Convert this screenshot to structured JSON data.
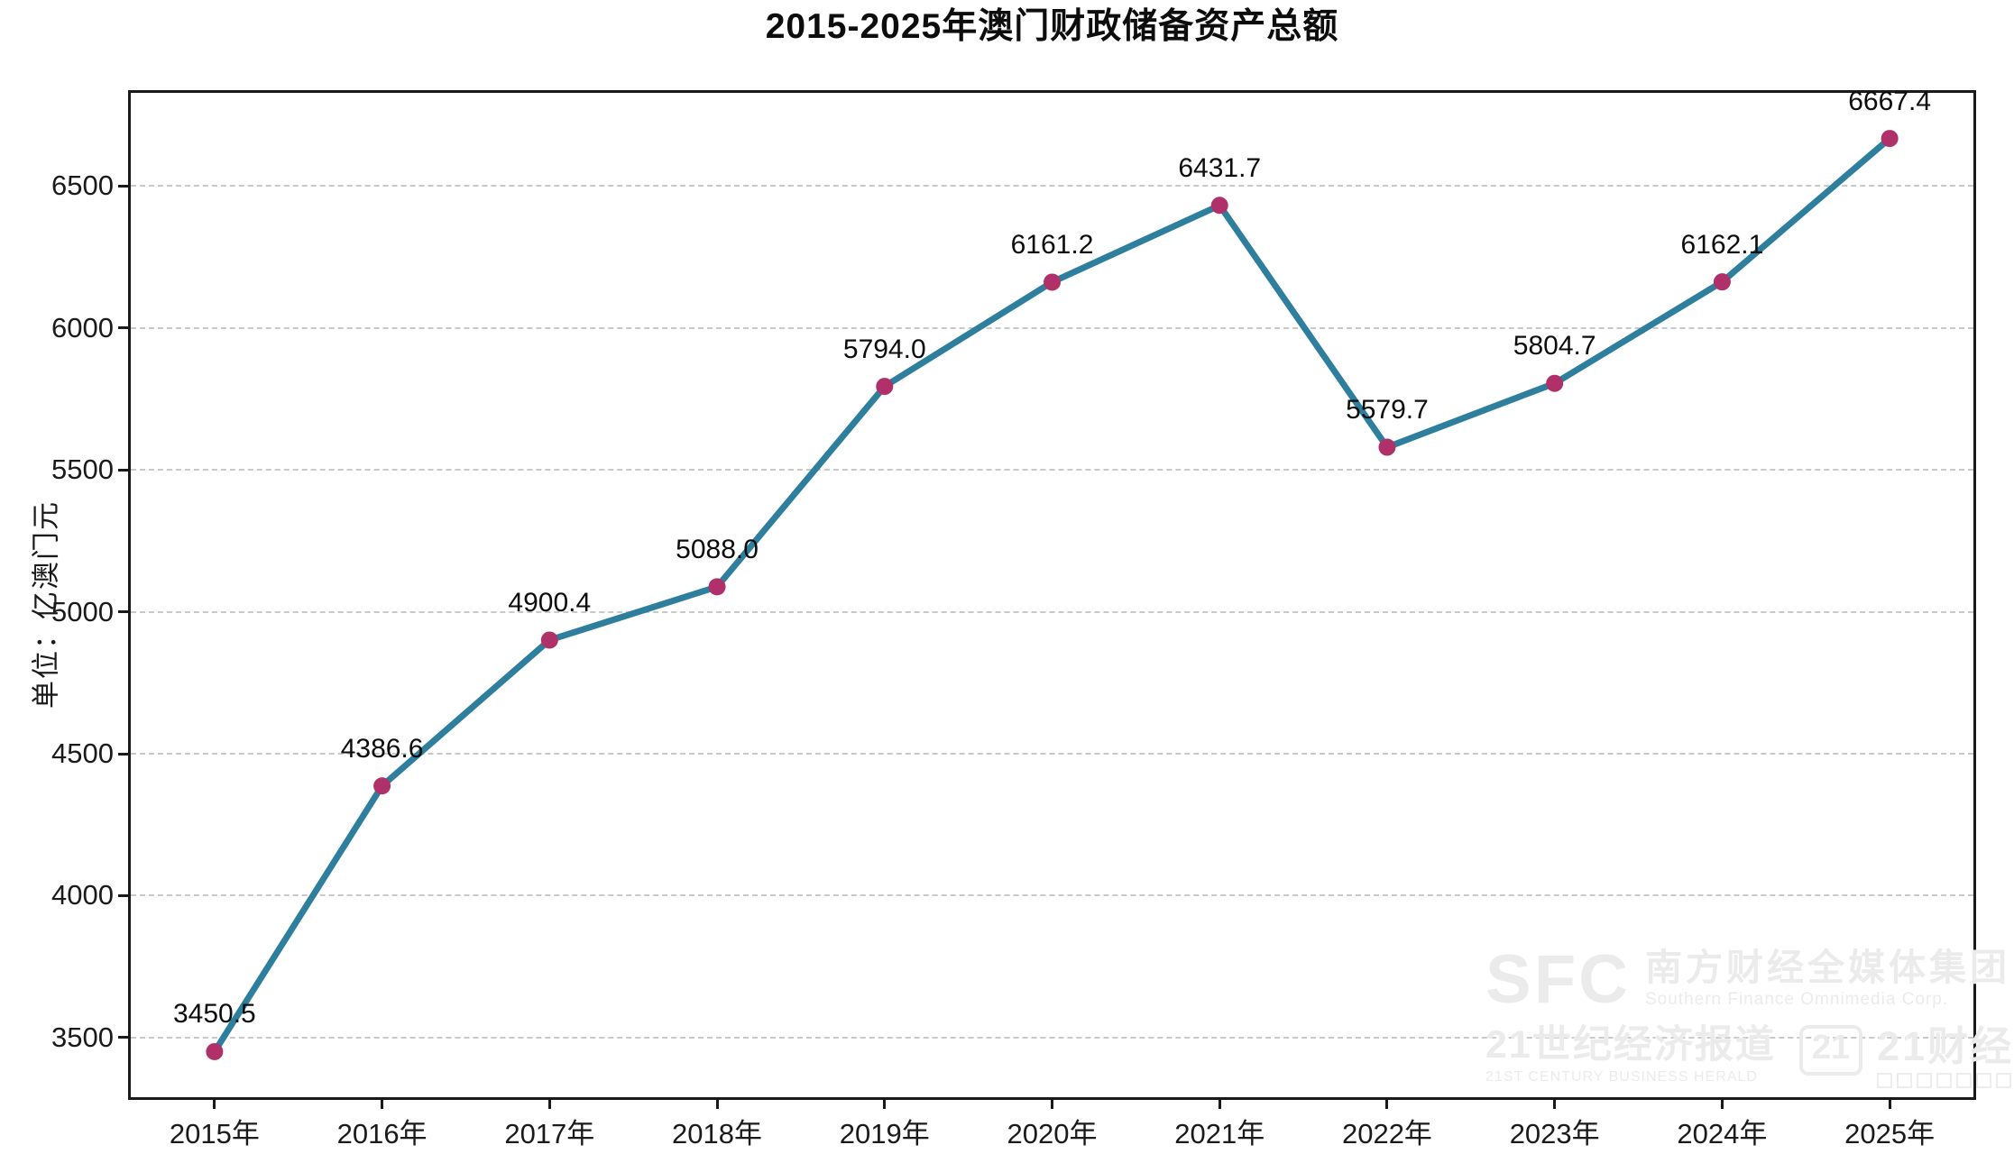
{
  "title": "2015-2025年澳门财政储备资产总额",
  "chart_data": {
    "type": "line",
    "title": "2015-2025年澳门财政储备资产总额",
    "ylabel": "单位：亿澳门元",
    "xlabel": "",
    "categories": [
      "2015年",
      "2016年",
      "2017年",
      "2018年",
      "2019年",
      "2020年",
      "2021年",
      "2022年",
      "2023年",
      "2024年",
      "2025年"
    ],
    "values": [
      3450.5,
      4386.6,
      4900.4,
      5088.0,
      5794.0,
      6161.2,
      6431.7,
      5579.7,
      5804.7,
      6162.1,
      6667.4
    ],
    "point_labels": [
      "3450.5",
      "4386.6",
      "4900.4",
      "5088.0",
      "5794.0",
      "6161.2",
      "6431.7",
      "5579.7",
      "5804.7",
      "6162.1",
      "6667.4"
    ],
    "yticks": [
      3500,
      4000,
      4500,
      5000,
      5500,
      6000,
      6500
    ],
    "ylim": [
      3290,
      6828
    ],
    "grid": "horizontal-dashed",
    "legend": "none",
    "line_color": "#2d7f9d",
    "marker_color": "#b03169",
    "gridline_color": "#c9c9c9",
    "axis_color": "#1a1a1a"
  },
  "watermark": {
    "sfc_logo": "SFC",
    "sfc_cn": "南方财经全媒体集团",
    "sfc_en": "Southern Finance Omnimedia Corp.",
    "herald_cn": "21世纪经济报道",
    "herald_en": "21ST CENTURY BUSINESS HERALD",
    "badge_21": "21",
    "cj_cn": "21财经"
  }
}
